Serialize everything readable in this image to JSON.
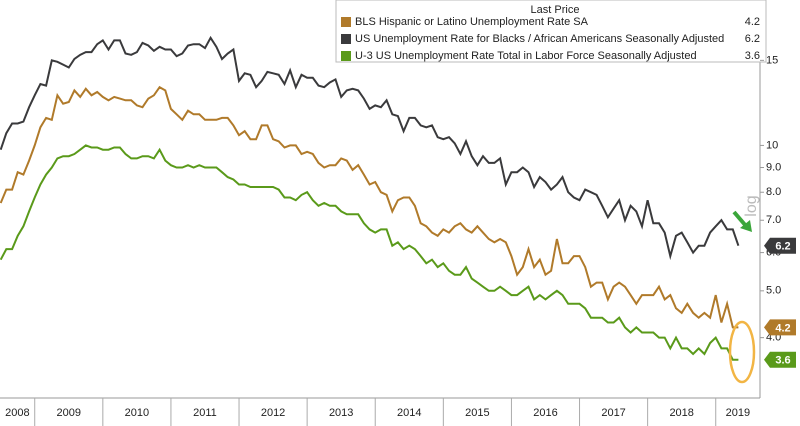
{
  "chart_data": {
    "type": "line",
    "legend_title": "Last Price",
    "yscale": "log",
    "xlim": [
      2008.49,
      2019.65
    ],
    "xticks": [
      2008,
      2009,
      2010,
      2011,
      2012,
      2013,
      2014,
      2015,
      2016,
      2017,
      2018,
      2019
    ],
    "ylim": [
      3,
      20
    ],
    "yticks": [
      {
        "value": 4,
        "label": "4.0"
      },
      {
        "value": 5,
        "label": "5.0"
      },
      {
        "value": 6,
        "label": "6.0"
      },
      {
        "value": 7,
        "label": "7.0"
      },
      {
        "value": 8,
        "label": "8.0"
      },
      {
        "value": 9,
        "label": "9.0"
      },
      10,
      15
    ],
    "x": [
      2008.5,
      2008.583,
      2008.667,
      2008.75,
      2008.833,
      2008.917,
      2009,
      2009.083,
      2009.167,
      2009.25,
      2009.333,
      2009.417,
      2009.5,
      2009.583,
      2009.667,
      2009.75,
      2009.833,
      2009.917,
      2010,
      2010.083,
      2010.167,
      2010.25,
      2010.333,
      2010.417,
      2010.5,
      2010.583,
      2010.667,
      2010.75,
      2010.833,
      2010.917,
      2011,
      2011.083,
      2011.167,
      2011.25,
      2011.333,
      2011.417,
      2011.5,
      2011.583,
      2011.667,
      2011.75,
      2011.833,
      2011.917,
      2012,
      2012.083,
      2012.167,
      2012.25,
      2012.333,
      2012.417,
      2012.5,
      2012.583,
      2012.667,
      2012.75,
      2012.833,
      2012.917,
      2013,
      2013.083,
      2013.167,
      2013.25,
      2013.333,
      2013.417,
      2013.5,
      2013.583,
      2013.667,
      2013.75,
      2013.833,
      2013.917,
      2014,
      2014.083,
      2014.167,
      2014.25,
      2014.333,
      2014.417,
      2014.5,
      2014.583,
      2014.667,
      2014.75,
      2014.833,
      2014.917,
      2015,
      2015.083,
      2015.167,
      2015.25,
      2015.333,
      2015.417,
      2015.5,
      2015.583,
      2015.667,
      2015.75,
      2015.833,
      2015.917,
      2016,
      2016.083,
      2016.167,
      2016.25,
      2016.333,
      2016.417,
      2016.5,
      2016.583,
      2016.667,
      2016.75,
      2016.833,
      2016.917,
      2017,
      2017.083,
      2017.167,
      2017.25,
      2017.333,
      2017.417,
      2017.5,
      2017.583,
      2017.667,
      2017.75,
      2017.833,
      2017.917,
      2018,
      2018.083,
      2018.167,
      2018.25,
      2018.333,
      2018.417,
      2018.5,
      2018.583,
      2018.667,
      2018.75,
      2018.833,
      2018.917,
      2019,
      2019.083,
      2019.167,
      2019.25,
      2019.333
    ],
    "series": [
      {
        "name": "BLS Hispanic or Latino Unemployment Rate SA",
        "color": "#b07a2a",
        "values": [
          7.6,
          8.1,
          8.1,
          8.8,
          8.7,
          9.3,
          10.0,
          10.9,
          11.4,
          11.3,
          12.7,
          12.2,
          12.3,
          13.0,
          12.6,
          13.1,
          12.7,
          12.9,
          12.6,
          12.4,
          12.6,
          12.5,
          12.4,
          12.4,
          12.1,
          12.0,
          12.5,
          12.7,
          13.2,
          13.0,
          11.9,
          11.6,
          11.3,
          11.8,
          11.6,
          11.6,
          11.3,
          11.3,
          11.3,
          11.4,
          11.4,
          11.0,
          10.5,
          10.7,
          10.3,
          10.3,
          11.0,
          11.0,
          10.3,
          10.2,
          9.9,
          10.0,
          10.0,
          9.6,
          9.7,
          9.6,
          9.2,
          9.0,
          9.1,
          9.1,
          9.4,
          9.3,
          8.9,
          9.1,
          8.7,
          8.3,
          8.4,
          8.0,
          7.9,
          7.3,
          7.7,
          7.8,
          7.8,
          7.5,
          6.9,
          6.8,
          6.6,
          6.5,
          6.7,
          6.6,
          6.8,
          6.9,
          6.7,
          6.6,
          6.8,
          6.6,
          6.4,
          6.3,
          6.4,
          6.3,
          5.9,
          5.4,
          5.6,
          6.1,
          5.6,
          5.8,
          5.4,
          5.5,
          6.4,
          5.7,
          5.7,
          5.9,
          5.9,
          5.6,
          5.1,
          5.2,
          5.2,
          4.8,
          5.1,
          5.2,
          5.1,
          4.9,
          4.7,
          4.9,
          4.9,
          4.9,
          5.1,
          4.8,
          4.9,
          4.6,
          4.5,
          4.7,
          4.5,
          4.4,
          4.5,
          4.4,
          4.9,
          4.3,
          4.7,
          4.2,
          4.2
        ]
      },
      {
        "name": "US Unemployment Rate for Blacks / African Americans Seasonally Adjusted",
        "color": "#3a3a3c",
        "values": [
          9.8,
          10.6,
          11.1,
          11.1,
          11.2,
          12.0,
          12.7,
          13.4,
          13.3,
          15.0,
          14.9,
          14.7,
          14.5,
          15.1,
          15.4,
          15.6,
          15.6,
          16.2,
          16.5,
          15.8,
          16.5,
          16.5,
          15.5,
          15.4,
          15.6,
          16.3,
          16.1,
          15.7,
          16.0,
          15.8,
          15.8,
          15.3,
          15.5,
          16.1,
          16.2,
          16.2,
          15.9,
          16.7,
          16.0,
          15.1,
          15.5,
          15.8,
          13.6,
          14.1,
          14.0,
          13.2,
          13.6,
          14.2,
          14.1,
          14.0,
          13.4,
          14.3,
          13.2,
          14.0,
          13.8,
          13.8,
          13.3,
          13.2,
          13.5,
          13.7,
          12.6,
          13.0,
          13.1,
          13.0,
          12.5,
          11.9,
          12.1,
          12.0,
          12.4,
          11.6,
          11.5,
          10.7,
          11.4,
          11.4,
          11.0,
          10.9,
          11.0,
          10.4,
          10.3,
          10.4,
          10.1,
          9.6,
          10.2,
          9.5,
          9.1,
          9.5,
          9.2,
          9.2,
          9.4,
          8.3,
          8.8,
          8.8,
          9.0,
          8.8,
          8.2,
          8.6,
          8.4,
          8.1,
          8.3,
          8.6,
          8.0,
          7.8,
          7.7,
          8.1,
          8.0,
          7.9,
          7.5,
          7.1,
          7.4,
          7.7,
          7.0,
          7.5,
          7.3,
          6.8,
          7.7,
          6.9,
          6.9,
          6.6,
          5.9,
          6.5,
          6.6,
          6.3,
          6.0,
          6.2,
          6.2,
          6.6,
          6.8,
          7.0,
          6.7,
          6.7,
          6.2
        ]
      },
      {
        "name": "U-3 US Unemployment Rate Total in Labor Force Seasonally Adjusted",
        "color": "#5a9a1a",
        "values": [
          5.8,
          6.1,
          6.1,
          6.5,
          6.8,
          7.3,
          7.8,
          8.3,
          8.7,
          9.0,
          9.4,
          9.5,
          9.5,
          9.6,
          9.8,
          10.0,
          9.9,
          9.9,
          9.8,
          9.8,
          9.9,
          9.9,
          9.6,
          9.4,
          9.4,
          9.5,
          9.5,
          9.4,
          9.8,
          9.3,
          9.1,
          9.0,
          9.0,
          9.1,
          9.0,
          9.1,
          9.0,
          9.0,
          9.0,
          8.8,
          8.6,
          8.5,
          8.3,
          8.3,
          8.2,
          8.2,
          8.2,
          8.2,
          8.2,
          8.1,
          7.8,
          7.8,
          7.7,
          7.9,
          8.0,
          7.7,
          7.5,
          7.6,
          7.5,
          7.5,
          7.3,
          7.2,
          7.2,
          7.2,
          6.9,
          6.7,
          6.6,
          6.7,
          6.7,
          6.2,
          6.3,
          6.1,
          6.2,
          6.1,
          5.9,
          5.7,
          5.8,
          5.6,
          5.7,
          5.5,
          5.4,
          5.4,
          5.6,
          5.3,
          5.2,
          5.1,
          5.0,
          5.0,
          5.1,
          5.0,
          4.9,
          4.9,
          5.0,
          5.1,
          4.8,
          4.9,
          4.8,
          4.9,
          5.0,
          4.9,
          4.7,
          4.7,
          4.7,
          4.6,
          4.4,
          4.4,
          4.4,
          4.3,
          4.3,
          4.4,
          4.2,
          4.1,
          4.2,
          4.1,
          4.1,
          4.1,
          4.0,
          4.0,
          3.8,
          4.0,
          3.8,
          3.8,
          3.7,
          3.8,
          3.7,
          3.9,
          4.0,
          3.8,
          3.8,
          3.6,
          3.6
        ]
      }
    ]
  }
}
